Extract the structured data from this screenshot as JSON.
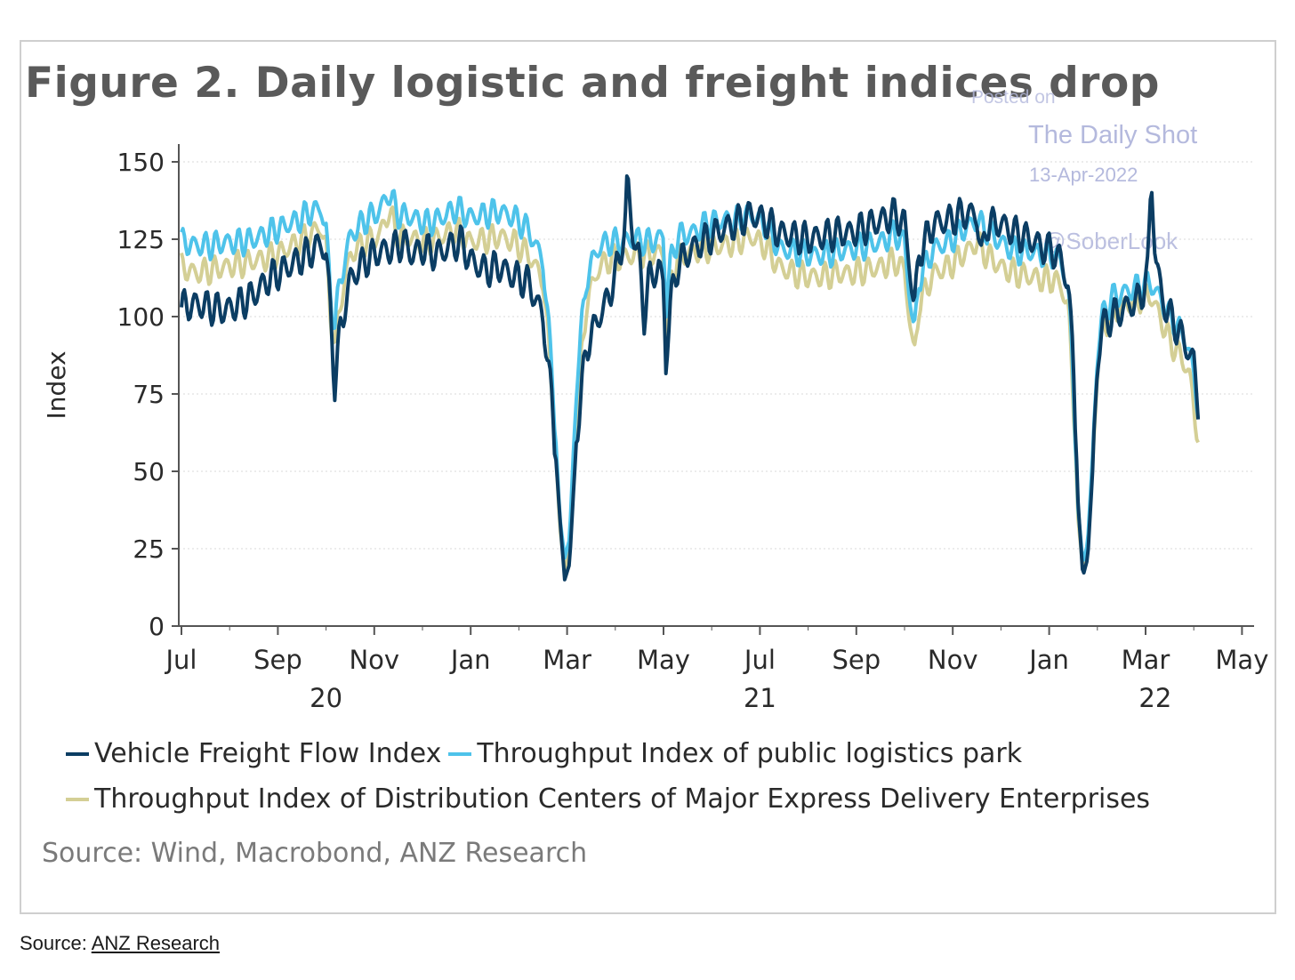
{
  "title": "Figure 2. Daily logistic and freight indices drop",
  "watermark": {
    "posted_on": "Posted on",
    "publisher": "The Daily Shot",
    "date": "13-Apr-2022",
    "brand": "@SoberLook"
  },
  "source_inner": "Source: Wind, Macrobond, ANZ Research",
  "footer": {
    "label": "Source:",
    "link": "ANZ Research"
  },
  "chart_data": {
    "type": "line",
    "title": "Figure 2. Daily logistic and freight indices drop",
    "ylabel": "Index",
    "xlabel": "",
    "ylim": [
      0,
      150
    ],
    "yticks": [
      {
        "value": 0,
        "label": "0"
      },
      {
        "value": 25,
        "label": "25"
      },
      {
        "value": 50,
        "label": "50"
      },
      {
        "value": 75,
        "label": "75"
      },
      {
        "value": 100,
        "label": "100"
      },
      {
        "value": 125,
        "label": "125"
      },
      {
        "value": 150,
        "label": "150"
      }
    ],
    "xlim": [
      0,
      22.3
    ],
    "xticks": [
      {
        "value": 0,
        "label": "Jul"
      },
      {
        "value": 2,
        "label": "Sep"
      },
      {
        "value": 4,
        "label": "Nov"
      },
      {
        "value": 6,
        "label": "Jan"
      },
      {
        "value": 8,
        "label": "Mar"
      },
      {
        "value": 10,
        "label": "May"
      },
      {
        "value": 12,
        "label": "Jul"
      },
      {
        "value": 14,
        "label": "Sep"
      },
      {
        "value": 16,
        "label": "Nov"
      },
      {
        "value": 18,
        "label": "Jan"
      },
      {
        "value": 20,
        "label": "Mar"
      },
      {
        "value": 22,
        "label": "May"
      }
    ],
    "year_labels": [
      {
        "value": 3,
        "label": "20"
      },
      {
        "value": 12,
        "label": "21"
      },
      {
        "value": 20.2,
        "label": "22"
      }
    ],
    "grid": true,
    "x_unit": "months since Jul 2020",
    "series": [
      {
        "name": "Vehicle Freight Flow Index",
        "color": "#0b3d63",
        "points": [
          [
            0,
            103
          ],
          [
            0.3,
            104
          ],
          [
            0.6,
            103
          ],
          [
            0.9,
            102
          ],
          [
            1.2,
            104
          ],
          [
            1.5,
            107
          ],
          [
            1.8,
            112
          ],
          [
            2.1,
            115
          ],
          [
            2.4,
            118
          ],
          [
            2.7,
            121
          ],
          [
            2.9,
            124
          ],
          [
            3.0,
            120
          ],
          [
            3.1,
            100
          ],
          [
            3.18,
            78
          ],
          [
            3.3,
            96
          ],
          [
            3.5,
            112
          ],
          [
            3.8,
            118
          ],
          [
            4.1,
            121
          ],
          [
            4.4,
            122
          ],
          [
            4.6,
            124
          ],
          [
            4.8,
            120
          ],
          [
            5.0,
            122
          ],
          [
            5.3,
            120
          ],
          [
            5.6,
            123
          ],
          [
            5.8,
            124
          ],
          [
            6.0,
            118
          ],
          [
            6.3,
            115
          ],
          [
            6.6,
            116
          ],
          [
            6.9,
            113
          ],
          [
            7.2,
            111
          ],
          [
            7.5,
            100
          ],
          [
            7.7,
            70
          ],
          [
            7.85,
            35
          ],
          [
            7.95,
            15
          ],
          [
            8.05,
            20
          ],
          [
            8.2,
            62
          ],
          [
            8.4,
            90
          ],
          [
            8.6,
            98
          ],
          [
            8.8,
            104
          ],
          [
            9.0,
            113
          ],
          [
            9.2,
            128
          ],
          [
            9.25,
            145
          ],
          [
            9.35,
            128
          ],
          [
            9.5,
            118
          ],
          [
            9.6,
            100
          ],
          [
            9.7,
            112
          ],
          [
            9.9,
            116
          ],
          [
            10.0,
            110
          ],
          [
            10.05,
            85
          ],
          [
            10.15,
            105
          ],
          [
            10.3,
            117
          ],
          [
            10.6,
            122
          ],
          [
            10.9,
            125
          ],
          [
            11.2,
            128
          ],
          [
            11.5,
            130
          ],
          [
            11.8,
            133
          ],
          [
            12.1,
            131
          ],
          [
            12.4,
            127
          ],
          [
            12.7,
            126
          ],
          [
            13.0,
            125
          ],
          [
            13.3,
            126
          ],
          [
            13.6,
            127
          ],
          [
            13.9,
            127
          ],
          [
            14.2,
            129
          ],
          [
            14.5,
            131
          ],
          [
            14.8,
            133
          ],
          [
            15.0,
            130
          ],
          [
            15.1,
            118
          ],
          [
            15.2,
            102
          ],
          [
            15.3,
            120
          ],
          [
            15.6,
            130
          ],
          [
            15.9,
            131
          ],
          [
            16.2,
            133
          ],
          [
            16.5,
            133
          ],
          [
            16.6,
            118
          ],
          [
            16.7,
            130
          ],
          [
            17.0,
            130
          ],
          [
            17.3,
            127
          ],
          [
            17.6,
            125
          ],
          [
            17.9,
            122
          ],
          [
            18.1,
            121
          ],
          [
            18.25,
            118
          ],
          [
            18.4,
            110
          ],
          [
            18.5,
            85
          ],
          [
            18.6,
            40
          ],
          [
            18.7,
            16
          ],
          [
            18.8,
            22
          ],
          [
            18.9,
            50
          ],
          [
            19.0,
            85
          ],
          [
            19.1,
            97
          ],
          [
            19.3,
            100
          ],
          [
            19.6,
            103
          ],
          [
            19.9,
            106
          ],
          [
            20.05,
            115
          ],
          [
            20.12,
            146
          ],
          [
            20.2,
            120
          ],
          [
            20.35,
            105
          ],
          [
            20.55,
            99
          ],
          [
            20.8,
            92
          ],
          [
            21.0,
            85
          ],
          [
            21.1,
            70
          ]
        ]
      },
      {
        "name": "Throughput Index of public logistics park",
        "color": "#4ec3ea",
        "points": [
          [
            0,
            124
          ],
          [
            0.3,
            123
          ],
          [
            0.6,
            123
          ],
          [
            0.9,
            124
          ],
          [
            1.2,
            124
          ],
          [
            1.5,
            125
          ],
          [
            1.8,
            127
          ],
          [
            2.1,
            129
          ],
          [
            2.4,
            131
          ],
          [
            2.7,
            134
          ],
          [
            2.9,
            135
          ],
          [
            3.0,
            128
          ],
          [
            3.1,
            105
          ],
          [
            3.18,
            98
          ],
          [
            3.3,
            112
          ],
          [
            3.5,
            126
          ],
          [
            3.8,
            131
          ],
          [
            4.1,
            134
          ],
          [
            4.3,
            140
          ],
          [
            4.5,
            133
          ],
          [
            4.8,
            132
          ],
          [
            5.1,
            130
          ],
          [
            5.4,
            132
          ],
          [
            5.7,
            135
          ],
          [
            6.0,
            132
          ],
          [
            6.3,
            133
          ],
          [
            6.6,
            134
          ],
          [
            6.9,
            132
          ],
          [
            7.2,
            128
          ],
          [
            7.5,
            118
          ],
          [
            7.7,
            80
          ],
          [
            7.85,
            35
          ],
          [
            7.95,
            22
          ],
          [
            8.05,
            28
          ],
          [
            8.2,
            80
          ],
          [
            8.4,
            112
          ],
          [
            8.6,
            121
          ],
          [
            8.8,
            124
          ],
          [
            9.1,
            124
          ],
          [
            9.4,
            125
          ],
          [
            9.7,
            124
          ],
          [
            10.0,
            126
          ],
          [
            10.05,
            103
          ],
          [
            10.15,
            118
          ],
          [
            10.3,
            126
          ],
          [
            10.6,
            127
          ],
          [
            10.9,
            130
          ],
          [
            11.2,
            131
          ],
          [
            11.5,
            131
          ],
          [
            11.8,
            133
          ],
          [
            12.1,
            130
          ],
          [
            12.4,
            122
          ],
          [
            12.7,
            121
          ],
          [
            13.0,
            120
          ],
          [
            13.3,
            120
          ],
          [
            13.6,
            121
          ],
          [
            13.9,
            122
          ],
          [
            14.2,
            123
          ],
          [
            14.5,
            124
          ],
          [
            14.8,
            127
          ],
          [
            15.0,
            124
          ],
          [
            15.1,
            108
          ],
          [
            15.2,
            94
          ],
          [
            15.3,
            112
          ],
          [
            15.6,
            122
          ],
          [
            15.9,
            124
          ],
          [
            16.2,
            128
          ],
          [
            16.5,
            131
          ],
          [
            16.7,
            128
          ],
          [
            17.0,
            124
          ],
          [
            17.3,
            121
          ],
          [
            17.6,
            121
          ],
          [
            17.9,
            120
          ],
          [
            18.1,
            120
          ],
          [
            18.25,
            118
          ],
          [
            18.4,
            108
          ],
          [
            18.5,
            80
          ],
          [
            18.6,
            38
          ],
          [
            18.7,
            20
          ],
          [
            18.8,
            27
          ],
          [
            18.9,
            55
          ],
          [
            19.0,
            88
          ],
          [
            19.1,
            100
          ],
          [
            19.3,
            106
          ],
          [
            19.6,
            108
          ],
          [
            19.9,
            110
          ],
          [
            20.1,
            111
          ],
          [
            20.3,
            106
          ],
          [
            20.5,
            100
          ],
          [
            20.7,
            96
          ],
          [
            20.9,
            90
          ],
          [
            21.1,
            70
          ]
        ]
      },
      {
        "name": "Throughput Index of Distribution Centers of Major Express Delivery Enterprises",
        "color": "#d4cf95",
        "points": [
          [
            0,
            116
          ],
          [
            0.3,
            114
          ],
          [
            0.6,
            115
          ],
          [
            0.9,
            116
          ],
          [
            1.2,
            117
          ],
          [
            1.5,
            118
          ],
          [
            1.8,
            119
          ],
          [
            2.1,
            121
          ],
          [
            2.4,
            124
          ],
          [
            2.7,
            127
          ],
          [
            2.9,
            129
          ],
          [
            3.0,
            122
          ],
          [
            3.1,
            100
          ],
          [
            3.18,
            90
          ],
          [
            3.3,
            105
          ],
          [
            3.5,
            120
          ],
          [
            3.8,
            124
          ],
          [
            4.1,
            126
          ],
          [
            4.3,
            134
          ],
          [
            4.5,
            126
          ],
          [
            4.8,
            125
          ],
          [
            5.1,
            124
          ],
          [
            5.4,
            126
          ],
          [
            5.7,
            128
          ],
          [
            6.0,
            124
          ],
          [
            6.3,
            125
          ],
          [
            6.6,
            126
          ],
          [
            6.9,
            124
          ],
          [
            7.2,
            120
          ],
          [
            7.5,
            112
          ],
          [
            7.7,
            75
          ],
          [
            7.85,
            32
          ],
          [
            7.95,
            18
          ],
          [
            8.05,
            24
          ],
          [
            8.2,
            70
          ],
          [
            8.4,
            104
          ],
          [
            8.6,
            114
          ],
          [
            8.8,
            118
          ],
          [
            9.1,
            119
          ],
          [
            9.4,
            120
          ],
          [
            9.7,
            120
          ],
          [
            10.0,
            121
          ],
          [
            10.05,
            95
          ],
          [
            10.15,
            112
          ],
          [
            10.3,
            119
          ],
          [
            10.6,
            121
          ],
          [
            10.9,
            122
          ],
          [
            11.2,
            123
          ],
          [
            11.5,
            124
          ],
          [
            11.8,
            126
          ],
          [
            12.1,
            123
          ],
          [
            12.4,
            116
          ],
          [
            12.7,
            114
          ],
          [
            13.0,
            113
          ],
          [
            13.3,
            113
          ],
          [
            13.6,
            114
          ],
          [
            13.9,
            114
          ],
          [
            14.2,
            115
          ],
          [
            14.5,
            116
          ],
          [
            14.8,
            118
          ],
          [
            15.0,
            115
          ],
          [
            15.1,
            100
          ],
          [
            15.2,
            86
          ],
          [
            15.3,
            104
          ],
          [
            15.6,
            114
          ],
          [
            15.9,
            116
          ],
          [
            16.2,
            120
          ],
          [
            16.5,
            124
          ],
          [
            16.7,
            120
          ],
          [
            17.0,
            116
          ],
          [
            17.3,
            114
          ],
          [
            17.6,
            113
          ],
          [
            17.9,
            112
          ],
          [
            18.1,
            112
          ],
          [
            18.25,
            110
          ],
          [
            18.4,
            102
          ],
          [
            18.5,
            75
          ],
          [
            18.6,
            35
          ],
          [
            18.7,
            18
          ],
          [
            18.8,
            24
          ],
          [
            18.9,
            52
          ],
          [
            19.0,
            84
          ],
          [
            19.1,
            96
          ],
          [
            19.3,
            101
          ],
          [
            19.6,
            104
          ],
          [
            19.9,
            106
          ],
          [
            20.1,
            107
          ],
          [
            20.3,
            100
          ],
          [
            20.5,
            92
          ],
          [
            20.7,
            88
          ],
          [
            20.9,
            82
          ],
          [
            21.1,
            60
          ]
        ]
      }
    ],
    "legend": "bottom"
  }
}
